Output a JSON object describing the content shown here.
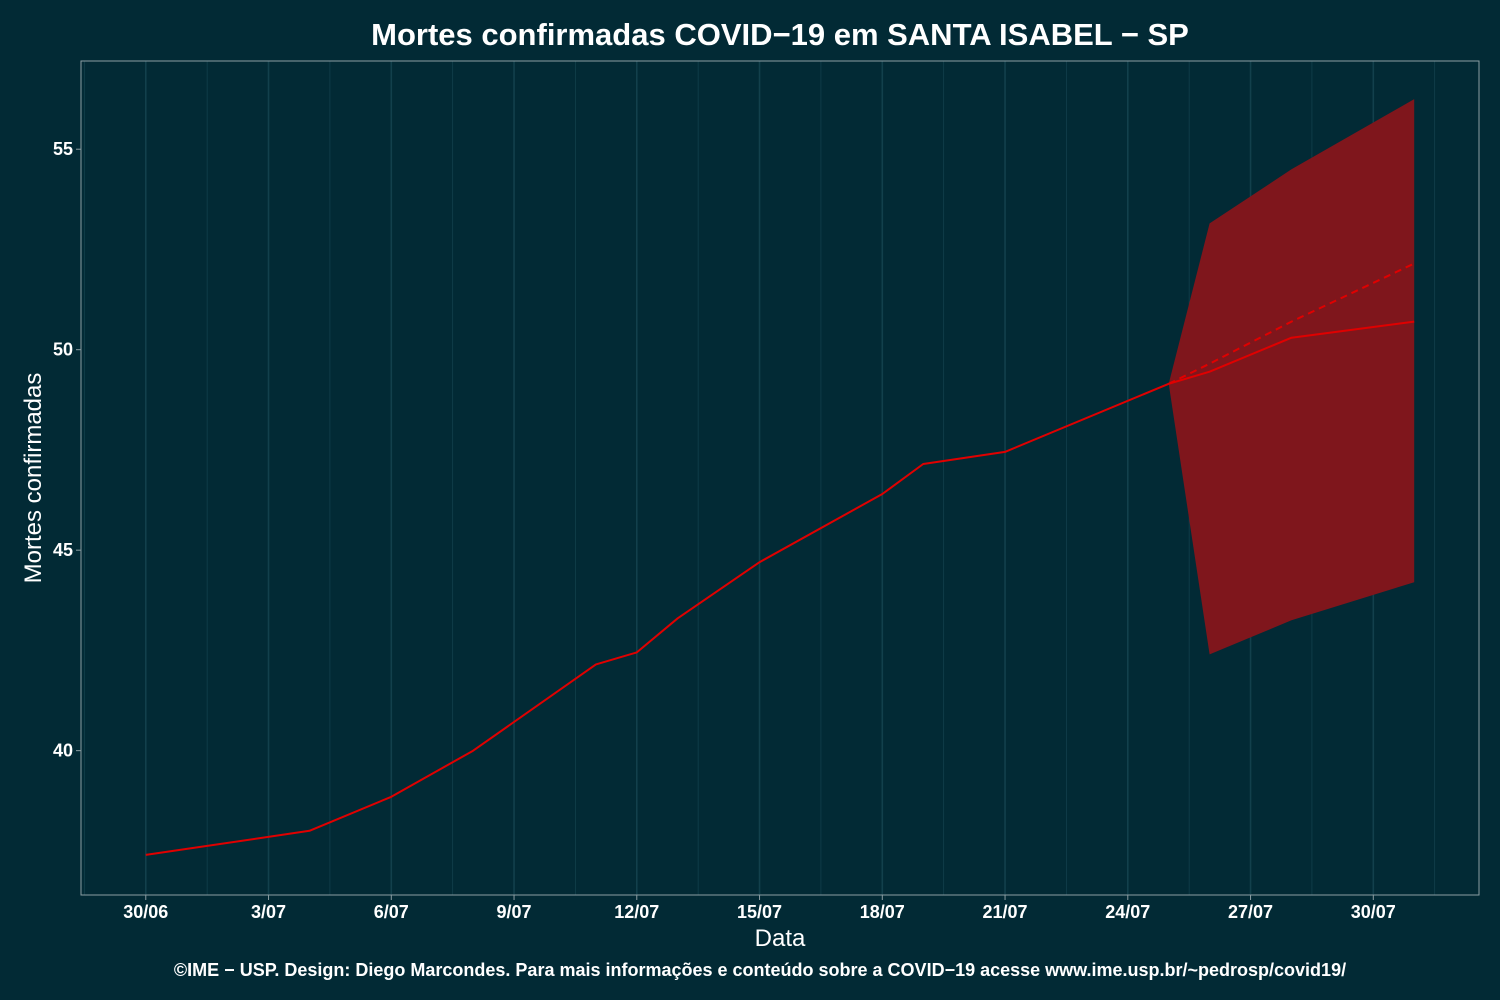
{
  "chart_data": {
    "type": "line",
    "title": "Mortes confirmadas COVID−19 em SANTA ISABEL − SP",
    "xlabel": "Data",
    "ylabel": "Mortes confirmadas",
    "caption": "©IME − USP. Design: Diego Marcondes. Para mais informações e conteúdo sobre a COVID−19 acesse www.ime.usp.br/~pedrosp/covid19/",
    "x_tick_labels": [
      "30/06",
      "3/07",
      "6/07",
      "9/07",
      "12/07",
      "15/07",
      "18/07",
      "21/07",
      "24/07",
      "27/07",
      "30/07"
    ],
    "x_tick_dates": [
      "2020-06-30",
      "2020-07-03",
      "2020-07-06",
      "2020-07-09",
      "2020-07-12",
      "2020-07-15",
      "2020-07-18",
      "2020-07-21",
      "2020-07-24",
      "2020-07-27",
      "2020-07-30"
    ],
    "y_ticks": [
      40,
      45,
      50,
      55
    ],
    "xlim": [
      "2020-06-28 10:00",
      "2020-08-01 14:00"
    ],
    "ylim": [
      36.4,
      57.2
    ],
    "grid": "vertical",
    "series": [
      {
        "style": "solid",
        "color": "#e00000",
        "points": [
          {
            "x": "2020-06-30",
            "y": 37.4
          },
          {
            "x": "2020-07-04",
            "y": 38.0
          },
          {
            "x": "2020-07-06",
            "y": 38.85
          },
          {
            "x": "2020-07-08",
            "y": 40.0
          },
          {
            "x": "2020-07-11",
            "y": 42.15
          },
          {
            "x": "2020-07-12",
            "y": 42.45
          },
          {
            "x": "2020-07-13",
            "y": 43.3
          },
          {
            "x": "2020-07-15",
            "y": 44.7
          },
          {
            "x": "2020-07-18",
            "y": 46.4
          },
          {
            "x": "2020-07-19",
            "y": 47.15
          },
          {
            "x": "2020-07-21",
            "y": 47.45
          },
          {
            "x": "2020-07-25",
            "y": 49.15
          },
          {
            "x": "2020-07-26",
            "y": 49.45
          },
          {
            "x": "2020-07-28",
            "y": 50.3
          },
          {
            "x": "2020-07-31",
            "y": 50.7
          }
        ]
      },
      {
        "style": "dashed",
        "color": "#e00000",
        "points": [
          {
            "x": "2020-07-25",
            "y": 49.15
          },
          {
            "x": "2020-07-26",
            "y": 49.65
          },
          {
            "x": "2020-07-28",
            "y": 50.7
          },
          {
            "x": "2020-07-31",
            "y": 52.15
          }
        ]
      }
    ],
    "band": {
      "color": "#7f161c",
      "points": [
        {
          "x": "2020-07-25",
          "low": 49.15,
          "high": 49.15
        },
        {
          "x": "2020-07-26",
          "low": 42.4,
          "high": 53.15
        },
        {
          "x": "2020-07-28",
          "low": 43.25,
          "high": 54.5
        },
        {
          "x": "2020-07-31",
          "low": 44.2,
          "high": 56.25
        }
      ]
    },
    "colors": {
      "background": "#022a35",
      "panel_border": "#8c9ea3",
      "grid": "#12404c",
      "text": "#ffffff"
    }
  }
}
